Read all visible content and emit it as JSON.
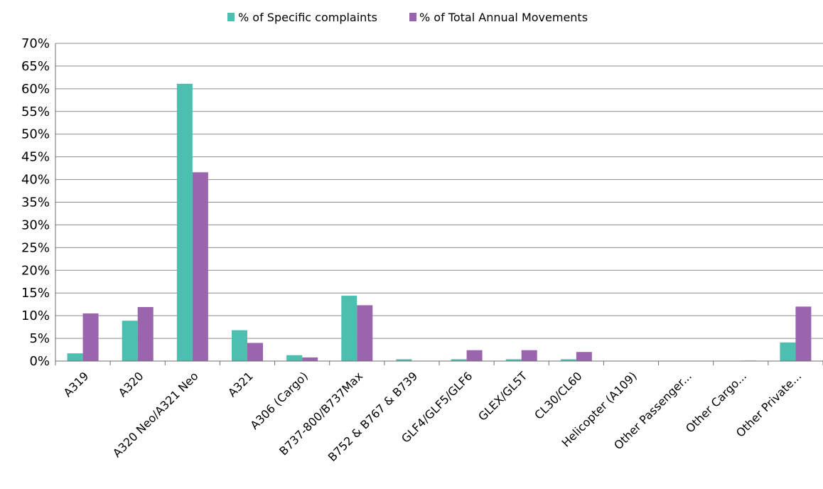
{
  "chart_data": {
    "type": "bar",
    "title": "",
    "xlabel": "",
    "ylabel": "",
    "ylim": [
      0,
      0.7
    ],
    "yticks": [
      "0%",
      "5%",
      "10%",
      "15%",
      "20%",
      "25%",
      "30%",
      "35%",
      "40%",
      "45%",
      "50%",
      "55%",
      "60%",
      "65%",
      "70%"
    ],
    "grid": true,
    "legend_position": "top-center",
    "categories": [
      "A319",
      "A320",
      "A320 Neo/A321 Neo",
      "A321",
      "A306 (Cargo)",
      "B737-800/B737Max",
      "B752 & B767 & B739",
      "GLF4/GLF5/GLF6",
      "GLEX/GL5T",
      "CL30/CL60",
      "Helicopter (A109)",
      "Other Passenger...",
      "Other Cargo...",
      "Other Private..."
    ],
    "series": [
      {
        "name": "% of Specific complaints",
        "color": "#4dbfb1",
        "values": [
          0.017,
          0.089,
          0.611,
          0.068,
          0.013,
          0.144,
          0.004,
          0.004,
          0.004,
          0.004,
          0.0,
          0.0,
          0.0,
          0.041
        ]
      },
      {
        "name": "% of Total Annual Movements",
        "color": "#9b65ad",
        "values": [
          0.105,
          0.119,
          0.416,
          0.04,
          0.008,
          0.123,
          0.0,
          0.024,
          0.024,
          0.02,
          0.0,
          0.0,
          0.001,
          0.12
        ]
      }
    ]
  }
}
